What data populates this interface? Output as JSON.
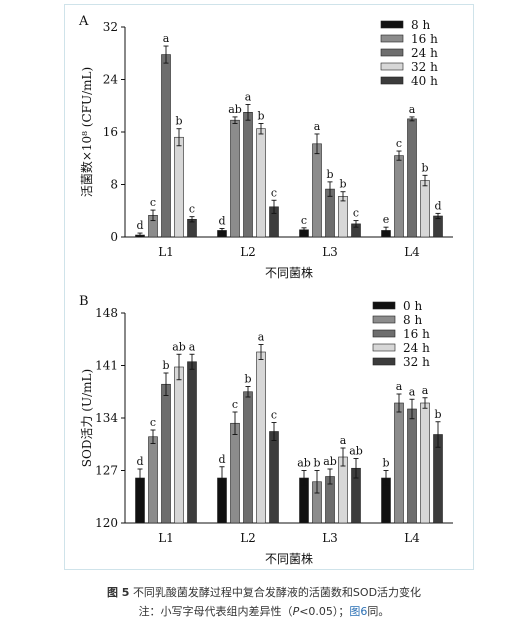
{
  "chart_data": [
    {
      "panel": "A",
      "type": "bar",
      "categories": [
        "L1",
        "L2",
        "L3",
        "L4"
      ],
      "series": [
        {
          "name": "8 h",
          "color": "#111111",
          "values": [
            0.3,
            1.0,
            1.1,
            1.0
          ],
          "errors": [
            0.3,
            0.3,
            0.3,
            0.5
          ],
          "letters": [
            "d",
            "d",
            "c",
            "e"
          ]
        },
        {
          "name": "16 h",
          "color": "#8c8c8c",
          "values": [
            3.3,
            17.8,
            14.2,
            12.4
          ],
          "errors": [
            0.8,
            0.5,
            1.5,
            0.7
          ],
          "letters": [
            "c",
            "ab",
            "a",
            "c"
          ]
        },
        {
          "name": "24 h",
          "color": "#6e6e6e",
          "values": [
            27.8,
            19.0,
            7.3,
            18.0
          ],
          "errors": [
            1.3,
            1.2,
            1.1,
            0.3
          ],
          "letters": [
            "a",
            "a",
            "b",
            "a"
          ]
        },
        {
          "name": "32 h",
          "color": "#d7d7d7",
          "values": [
            15.2,
            16.5,
            6.2,
            8.6
          ],
          "errors": [
            1.3,
            0.8,
            0.7,
            0.8
          ],
          "letters": [
            "b",
            "b",
            "b",
            "b"
          ]
        },
        {
          "name": "40 h",
          "color": "#3c3c3c",
          "values": [
            2.7,
            4.6,
            2.0,
            3.2
          ],
          "errors": [
            0.4,
            1.0,
            0.5,
            0.4
          ],
          "letters": [
            "c",
            "c",
            "c",
            "d"
          ]
        }
      ],
      "ylabel": "活菌数×10⁸ (CFU/mL)",
      "xlabel": "不同菌株",
      "ylim": [
        0,
        32
      ],
      "yticks": [
        0,
        8,
        16,
        24,
        32
      ],
      "legend": "top-right"
    },
    {
      "panel": "B",
      "type": "bar",
      "categories": [
        "L1",
        "L2",
        "L3",
        "L4"
      ],
      "series": [
        {
          "name": "0 h",
          "color": "#111111",
          "values": [
            126.0,
            126.0,
            126.0,
            126.0
          ],
          "errors": [
            1.2,
            1.5,
            1.0,
            1.0
          ],
          "letters": [
            "d",
            "d",
            "ab",
            "b"
          ]
        },
        {
          "name": "8 h",
          "color": "#8c8c8c",
          "values": [
            131.5,
            133.3,
            125.5,
            136.0
          ],
          "errors": [
            0.9,
            1.5,
            1.5,
            1.2
          ],
          "letters": [
            "c",
            "c",
            "b",
            "a"
          ]
        },
        {
          "name": "16 h",
          "color": "#6e6e6e",
          "values": [
            138.5,
            137.5,
            126.2,
            135.2
          ],
          "errors": [
            1.5,
            0.7,
            1.0,
            1.3
          ],
          "letters": [
            "b",
            "b",
            "ab",
            "a"
          ]
        },
        {
          "name": "24 h",
          "color": "#d7d7d7",
          "values": [
            140.8,
            142.8,
            128.8,
            136.0
          ],
          "errors": [
            1.7,
            1.0,
            1.2,
            0.7
          ],
          "letters": [
            "ab",
            "a",
            "a",
            "a"
          ]
        },
        {
          "name": "32 h",
          "color": "#3c3c3c",
          "values": [
            141.5,
            132.2,
            127.3,
            131.8
          ],
          "errors": [
            1.0,
            1.2,
            1.3,
            1.7
          ],
          "letters": [
            "a",
            "c",
            "ab",
            "b"
          ]
        }
      ],
      "ylabel": "SOD活力 (U/mL)",
      "xlabel": "不同菌株",
      "ylim": [
        120,
        148
      ],
      "yticks": [
        120,
        127,
        134,
        141,
        148
      ],
      "legend": "top-right"
    }
  ],
  "caption": {
    "figure_label": "图 5",
    "title": "不同乳酸菌发酵过程中复合发酵液的活菌数和SOD活力变化",
    "note_prefix": "注：小写字母代表组内差异性（",
    "note_p": "P",
    "note_mid": "<0.05）；",
    "note_link": "图6",
    "note_suffix": "同。"
  }
}
